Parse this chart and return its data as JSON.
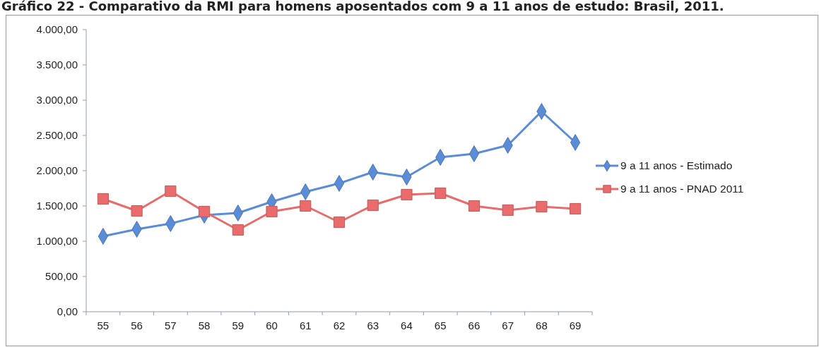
{
  "chart_data": {
    "type": "line",
    "title": "Gráfico 22 - Comparativo da RMI para homens aposentados com 9 a 11 anos de estudo: Brasil, 2011.",
    "categories": [
      "55",
      "56",
      "57",
      "58",
      "59",
      "60",
      "61",
      "62",
      "63",
      "64",
      "65",
      "66",
      "67",
      "68",
      "69"
    ],
    "series": [
      {
        "name": "9 a 11 anos - Estimado",
        "color": "#5b8cd8",
        "marker": "diamond",
        "values": [
          1070,
          1170,
          1250,
          1370,
          1400,
          1560,
          1700,
          1820,
          1980,
          1910,
          2190,
          2240,
          2360,
          2840,
          2400
        ]
      },
      {
        "name": "9 a 11 anos - PNAD 2011",
        "color": "#e96b6b",
        "marker": "square",
        "values": [
          1600,
          1430,
          1710,
          1420,
          1160,
          1420,
          1500,
          1270,
          1510,
          1660,
          1680,
          1500,
          1440,
          1490,
          1460
        ]
      }
    ],
    "ylim": [
      0,
      4000
    ],
    "yticks": [
      {
        "value": 0,
        "label": "0,00"
      },
      {
        "value": 500,
        "label": "500,00"
      },
      {
        "value": 1000,
        "label": "1.000,00"
      },
      {
        "value": 1500,
        "label": "1.500,00"
      },
      {
        "value": 2000,
        "label": "2.000,00"
      },
      {
        "value": 2500,
        "label": "2.500,00"
      },
      {
        "value": 3000,
        "label": "3.000,00"
      },
      {
        "value": 3500,
        "label": "3.500,00"
      },
      {
        "value": 4000,
        "label": "4.000,00"
      }
    ],
    "legend": "right"
  }
}
